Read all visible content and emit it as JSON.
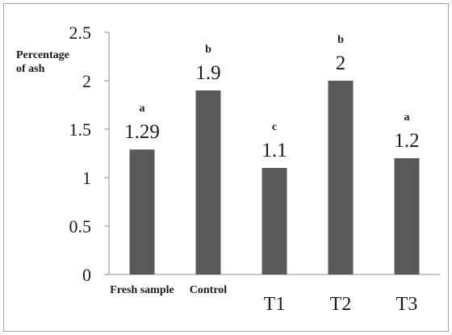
{
  "chart_data": {
    "type": "bar",
    "categories": [
      "Fresh sample",
      "Control",
      "T1",
      "T2",
      "T3"
    ],
    "values": [
      1.29,
      1.9,
      1.1,
      2,
      1.2
    ],
    "data_labels": [
      "1.29",
      "1.9",
      "1.1",
      "2",
      "1.2"
    ],
    "significance_letters": [
      "a",
      "b",
      "c",
      "b",
      "a"
    ],
    "ylabel_lines": [
      "Percentage",
      "of ash"
    ],
    "y_ticks": [
      "0",
      "0.5",
      "1",
      "1.5",
      "2",
      "2.5"
    ],
    "ylim": [
      0,
      2.5
    ],
    "grid": false,
    "bar_color": "#595959"
  }
}
